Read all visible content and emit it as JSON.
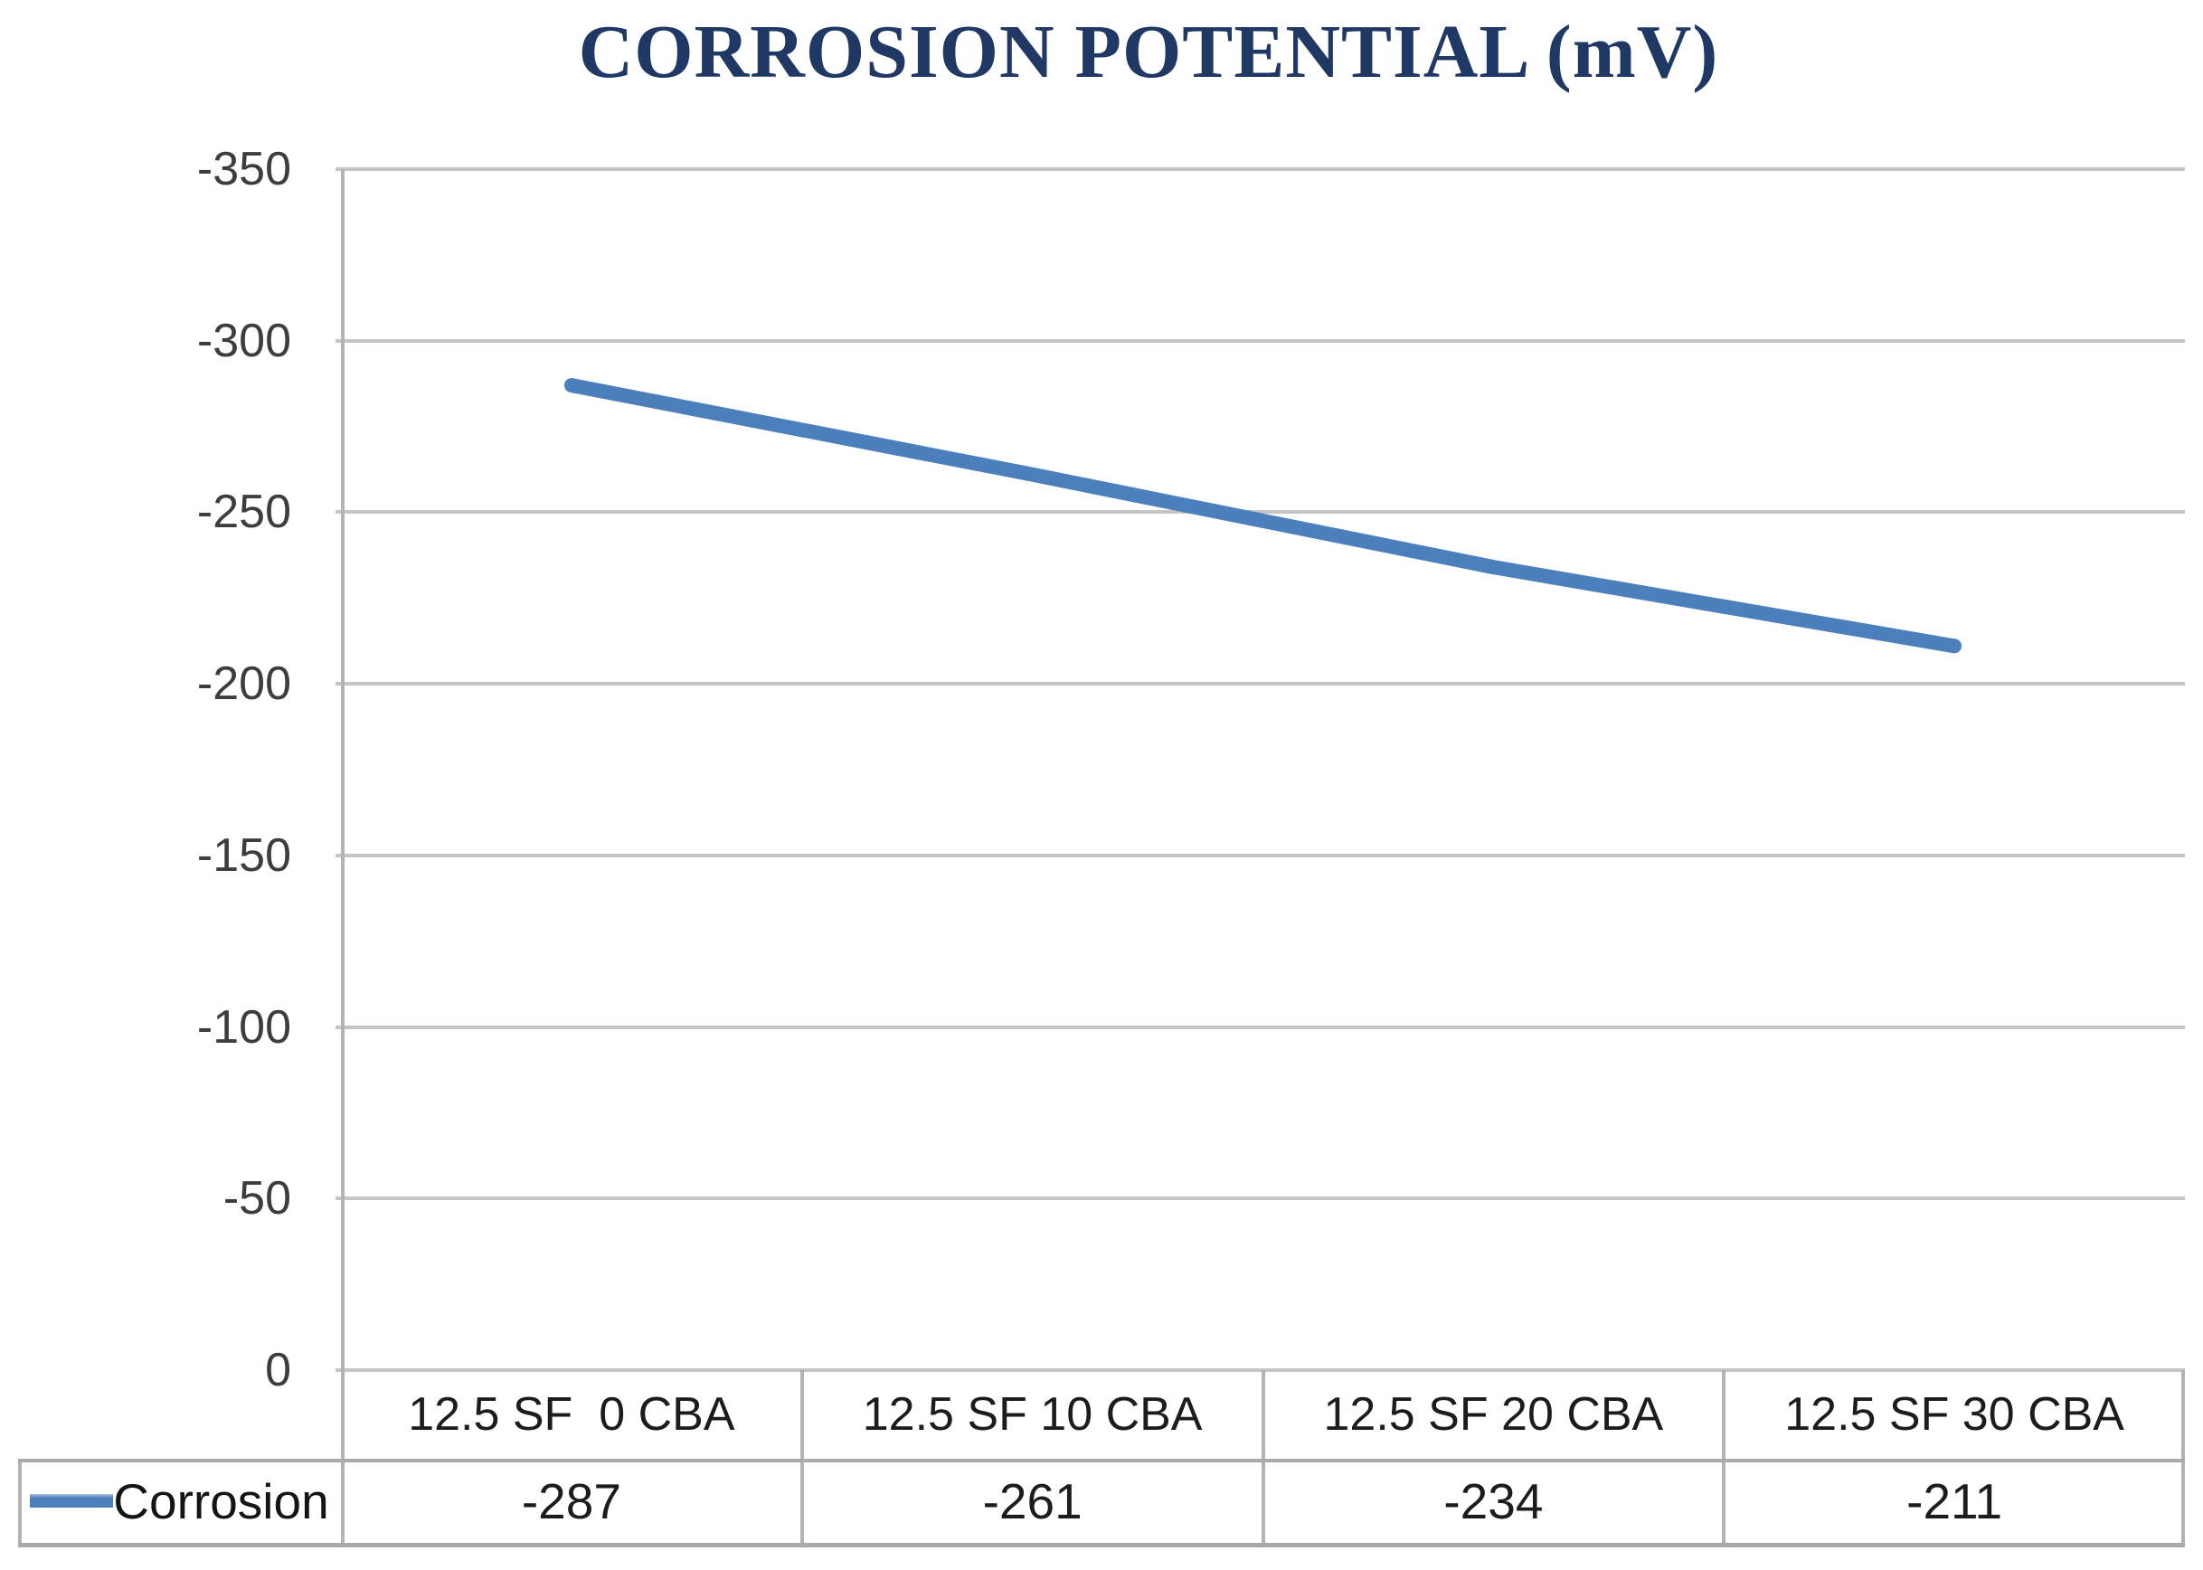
{
  "title": "CORROSION POTENTIAL (mV)",
  "legend": {
    "label": "Corrosion",
    "swatch_color": "#4c80bc"
  },
  "chart_data": {
    "type": "line",
    "title": "CORROSION POTENTIAL (mV)",
    "categories": [
      "12.5 SF  0 CBA",
      "12.5 SF 10 CBA",
      "12.5 SF 20 CBA",
      "12.5 SF 30 CBA"
    ],
    "series": [
      {
        "name": "Corrosion",
        "values": [
          -287,
          -261,
          -234,
          -211
        ]
      }
    ],
    "value_labels": [
      "-287",
      "-261",
      "-234",
      "-211"
    ],
    "xlabel": "",
    "ylabel": "",
    "ylim": [
      -350,
      0
    ],
    "y_axis_reversed": true,
    "y_tick_step": 50,
    "y_ticks": [
      -350,
      -300,
      -250,
      -200,
      -150,
      -100,
      -50,
      0
    ],
    "grid": true,
    "legend_position": "bottom-left-table",
    "line_color": "#4c80bc",
    "gridline_color": "#c5c5c5",
    "table_border_color": "#a9a9a9",
    "title_color": "#1f3864"
  }
}
